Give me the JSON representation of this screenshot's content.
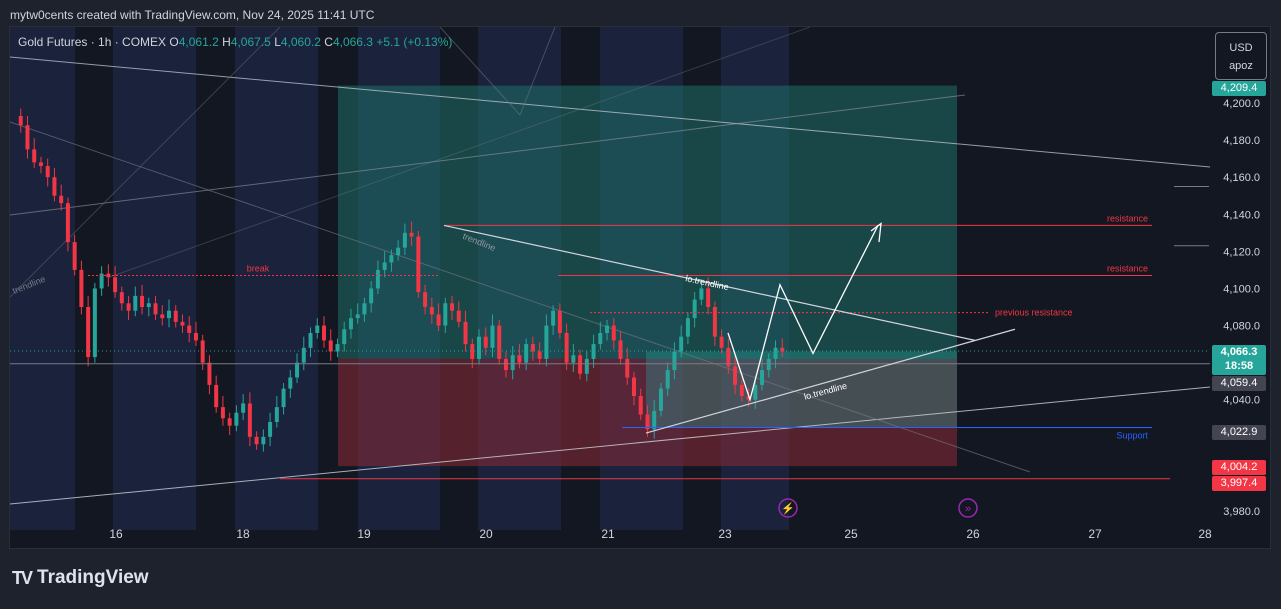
{
  "header": {
    "credit": "mytw0cents created with TradingView.com, Nov 24, 2025 11:41 UTC"
  },
  "legend": {
    "symbol": "Gold Futures · 1h · COMEX",
    "o_label": "O",
    "o": "4,061.2",
    "h_label": "H",
    "h": "4,067.5",
    "l_label": "L",
    "l": "4,060.2",
    "c_label": "C",
    "c": "4,066.3",
    "change": "+5.1 (+0.13%)"
  },
  "currency": {
    "unit": "USD",
    "mode": "apoz"
  },
  "price_tags": {
    "top": {
      "value": "4,209.4",
      "color": "#26a69a"
    },
    "last": {
      "value": "4,066.3",
      "countdown": "18:58",
      "color": "#26a69a"
    },
    "gray1": {
      "value": "4,059.4",
      "color": "#434651"
    },
    "gray2": {
      "value": "4,022.9",
      "color": "#434651"
    },
    "red1": {
      "value": "4,004.2",
      "color": "#f23645"
    },
    "red2": {
      "value": "3,997.4",
      "color": "#f23645"
    }
  },
  "chart_data": {
    "type": "line",
    "title": "",
    "xlabel": "",
    "ylabel": "",
    "ylim": [
      3970,
      4220
    ],
    "y_ticks": [
      3980,
      4040,
      4060,
      4080,
      4100,
      4120,
      4140,
      4160,
      4180,
      4200
    ],
    "y_tick_labels": [
      "3,980.0",
      "4,040.0",
      "4,060.0",
      "4,080.0",
      "4,100.0",
      "4,120.0",
      "4,140.0",
      "4,160.0",
      "4,180.0",
      "4,200.0"
    ],
    "x_labels": [
      "16",
      "18",
      "19",
      "20",
      "21",
      "23",
      "25",
      "26",
      "27",
      "28"
    ],
    "series": [
      {
        "values": [
          4193,
          4188,
          4175,
          4168,
          4166,
          4160,
          4150,
          4146,
          4125,
          4110,
          4090,
          4063,
          4100,
          4108,
          4106,
          4098,
          4092,
          4088,
          4096,
          4090,
          4092,
          4086,
          4084,
          4088,
          4082,
          4080,
          4076,
          4072,
          4060,
          4048,
          4036,
          4030,
          4026,
          4033,
          4038,
          4020,
          4016,
          4020,
          4028,
          4036,
          4046,
          4052,
          4060,
          4068,
          4076,
          4080,
          4072,
          4066,
          4070,
          4078,
          4084,
          4086,
          4092,
          4100,
          4110,
          4114,
          4118,
          4122,
          4130,
          4128,
          4098,
          4090,
          4086,
          4080,
          4092,
          4088,
          4082,
          4070,
          4062,
          4074,
          4068,
          4080,
          4062,
          4056,
          4064,
          4060,
          4070,
          4066,
          4062,
          4080,
          4088,
          4076,
          4060,
          4064,
          4054,
          4062,
          4070,
          4076,
          4080,
          4072,
          4062,
          4052,
          4042,
          4032,
          4024,
          4034,
          4046,
          4056,
          4066,
          4074,
          4084,
          4094,
          4100,
          4090,
          4074,
          4068,
          4058,
          4048,
          4042,
          4040,
          4048,
          4056,
          4062,
          4068,
          4066
        ]
      }
    ],
    "annotations": {
      "levels": [
        {
          "label": "resistance",
          "value": 4134
        },
        {
          "label": "resistance",
          "value": 4107
        },
        {
          "label": "previous resistance",
          "value": 4087
        },
        {
          "label": "Support",
          "value": 4025
        },
        {
          "label": "break",
          "value": 4107
        }
      ],
      "trendlines": [
        "trendline",
        "lo.trendline",
        "lo.trendline",
        "trendline"
      ],
      "long_position": {
        "entry": 4062,
        "target": 4209.4,
        "stop": 4004.2
      }
    }
  }
}
